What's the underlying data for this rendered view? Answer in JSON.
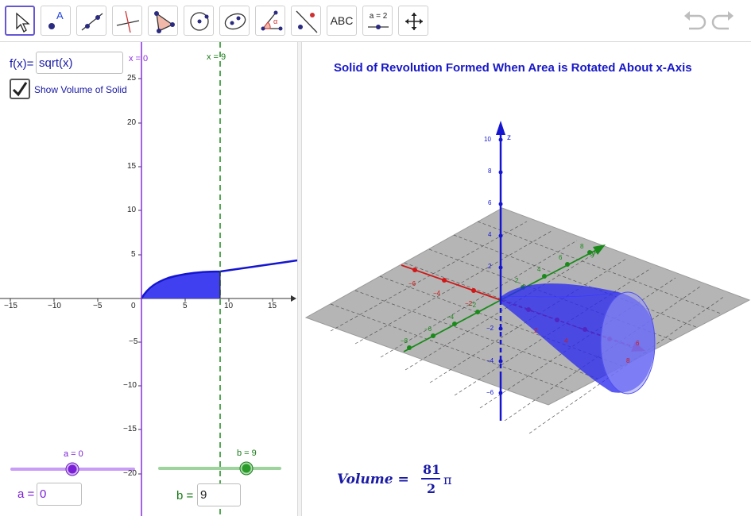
{
  "toolbar": {
    "tools": [
      {
        "name": "move-tool",
        "icon": "arrow-pointer-icon"
      },
      {
        "name": "point-tool",
        "icon": "point-icon"
      },
      {
        "name": "line-tool",
        "icon": "line-icon"
      },
      {
        "name": "perpendicular-line-tool",
        "icon": "perpendicular-line-icon"
      },
      {
        "name": "polygon-tool",
        "icon": "polygon-icon"
      },
      {
        "name": "circle-tool",
        "icon": "circle-icon"
      },
      {
        "name": "ellipse-tool",
        "icon": "ellipse-icon"
      },
      {
        "name": "angle-tool",
        "icon": "angle-icon"
      },
      {
        "name": "reflect-tool",
        "icon": "reflect-icon"
      },
      {
        "name": "text-tool",
        "icon": "text-icon",
        "label": "ABC"
      },
      {
        "name": "slider-tool",
        "icon": "slider-icon",
        "label": "a = 2"
      },
      {
        "name": "move-graphics-view-tool",
        "icon": "move-view-icon"
      }
    ],
    "point_label": "A",
    "angle_label": "α",
    "undo_icon": "undo-icon",
    "redo_icon": "redo-icon"
  },
  "algebra": {
    "fx_label": "f(x)=",
    "fx_value": "sqrt(x)",
    "show_volume_label": "Show Volume of Solid",
    "show_volume_checked": true,
    "a_label": "a =",
    "a_value": "0",
    "b_label": "b =",
    "b_value": "9"
  },
  "graph2d": {
    "x_ticks": [
      "−15",
      "−10",
      "−5",
      "0",
      "5",
      "10",
      "15"
    ],
    "y_ticks": [
      "25",
      "20",
      "15",
      "10",
      "5",
      "−5",
      "−10",
      "−15",
      "−20"
    ],
    "line_x0_label": "x = 0",
    "line_x9_label": "x = 9",
    "slider_a_label": "a = 0",
    "slider_b_label": "b = 9",
    "colors": {
      "curve": "#1515d0",
      "area": "#3c3cf0",
      "a": "#8a2be2",
      "b": "#2a9a2a"
    }
  },
  "graph3d": {
    "title": "Solid of Revolution Formed When Area is Rotated About x-Axis",
    "z_axis_label": "z",
    "y_axis_label": "y",
    "z_ticks": [
      "10",
      "8",
      "6",
      "4",
      "2",
      "−2",
      "−4",
      "−6"
    ],
    "x_ticks": [
      "−6",
      "−4",
      "−2",
      "2",
      "4",
      "6",
      "8"
    ],
    "y_ticks": [
      "−8",
      "−6",
      "−4",
      "−2",
      "2",
      "4",
      "6",
      "8"
    ],
    "volume_label": "Volume =",
    "volume_numerator": "81",
    "volume_denominator": "2",
    "volume_pi": "π"
  }
}
